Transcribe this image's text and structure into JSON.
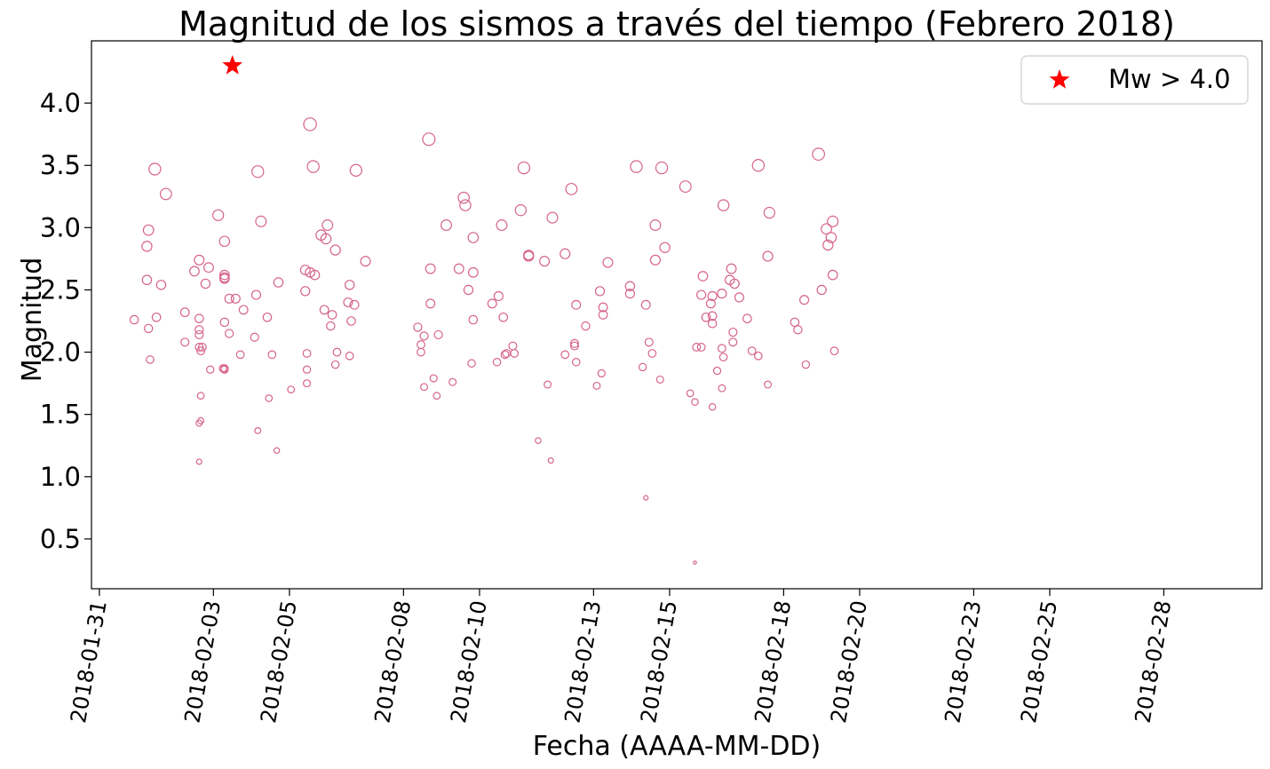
{
  "chart_data": {
    "type": "scatter",
    "title": "Magnitud de los sismos a través del tiempo (Febrero 2018)",
    "xlabel": "Fecha (AAAA-MM-DD)",
    "ylabel": "Magnitud",
    "xlim": [
      "2018-01-30T19:00",
      "2018-03-02T14:00"
    ],
    "ylim": [
      0.1,
      4.5
    ],
    "xticks": [
      "2018-01-31",
      "2018-02-03",
      "2018-02-05",
      "2018-02-08",
      "2018-02-10",
      "2018-02-13",
      "2018-02-15",
      "2018-02-18",
      "2018-02-20",
      "2018-02-23",
      "2018-02-25",
      "2018-02-28"
    ],
    "yticks": [
      "0.5",
      "1.0",
      "1.5",
      "2.0",
      "2.5",
      "3.0",
      "3.5",
      "4.0"
    ],
    "grid": false,
    "legend": {
      "position": "top-right",
      "entries": [
        "Mw > 4.0"
      ]
    },
    "colors": {
      "events": "#d6648c",
      "highlight": "#ff0000"
    },
    "series": [
      {
        "marker": "open-circle",
        "points": [
          [
            "2018-01-31T22:00",
            2.26
          ],
          [
            "2018-02-01T07:00",
            2.98
          ],
          [
            "2018-02-01T06:00",
            2.85
          ],
          [
            "2018-02-01T06:00",
            2.58
          ],
          [
            "2018-02-01T07:00",
            2.19
          ],
          [
            "2018-02-01T08:00",
            1.94
          ],
          [
            "2018-02-01T11:00",
            3.47
          ],
          [
            "2018-02-01T12:00",
            2.28
          ],
          [
            "2018-02-01T15:00",
            2.54
          ],
          [
            "2018-02-01T18:00",
            3.27
          ],
          [
            "2018-02-02T06:00",
            2.32
          ],
          [
            "2018-02-02T06:00",
            2.08
          ],
          [
            "2018-02-02T12:00",
            2.65
          ],
          [
            "2018-02-02T15:00",
            2.74
          ],
          [
            "2018-02-02T15:00",
            2.27
          ],
          [
            "2018-02-02T15:00",
            2.18
          ],
          [
            "2018-02-02T15:00",
            2.14
          ],
          [
            "2018-02-02T15:00",
            2.04
          ],
          [
            "2018-02-02T17:00",
            2.04
          ],
          [
            "2018-02-02T16:00",
            2.01
          ],
          [
            "2018-02-02T16:00",
            1.65
          ],
          [
            "2018-02-02T16:00",
            1.45
          ],
          [
            "2018-02-02T15:00",
            1.43
          ],
          [
            "2018-02-02T15:00",
            1.12
          ],
          [
            "2018-02-02T19:00",
            2.55
          ],
          [
            "2018-02-02T21:00",
            2.68
          ],
          [
            "2018-02-02T22:00",
            1.86
          ],
          [
            "2018-02-03T03:00",
            3.1
          ],
          [
            "2018-02-03T07:00",
            2.89
          ],
          [
            "2018-02-03T07:00",
            2.62
          ],
          [
            "2018-02-03T07:00",
            2.6
          ],
          [
            "2018-02-03T07:00",
            2.59
          ],
          [
            "2018-02-03T07:00",
            2.24
          ],
          [
            "2018-02-03T06:00",
            1.87
          ],
          [
            "2018-02-03T07:00",
            1.86
          ],
          [
            "2018-02-03T07:00",
            1.87
          ],
          [
            "2018-02-03T10:00",
            2.43
          ],
          [
            "2018-02-03T10:00",
            2.15
          ],
          [
            "2018-02-03T14:00",
            2.43
          ],
          [
            "2018-02-03T19:00",
            2.34
          ],
          [
            "2018-02-03T17:00",
            1.98
          ],
          [
            "2018-02-04T04:00",
            3.45
          ],
          [
            "2018-02-04T03:00",
            2.46
          ],
          [
            "2018-02-04T02:00",
            2.12
          ],
          [
            "2018-02-04T04:00",
            1.37
          ],
          [
            "2018-02-04T06:00",
            3.05
          ],
          [
            "2018-02-04T10:00",
            2.28
          ],
          [
            "2018-02-04T11:00",
            1.63
          ],
          [
            "2018-02-04T13:00",
            1.98
          ],
          [
            "2018-02-04T17:00",
            2.56
          ],
          [
            "2018-02-04T16:00",
            1.21
          ],
          [
            "2018-02-05T01:00",
            1.7
          ],
          [
            "2018-02-05T10:00",
            2.66
          ],
          [
            "2018-02-05T10:00",
            2.49
          ],
          [
            "2018-02-05T11:00",
            1.99
          ],
          [
            "2018-02-05T11:00",
            1.86
          ],
          [
            "2018-02-05T11:00",
            1.75
          ],
          [
            "2018-02-05T13:00",
            3.83
          ],
          [
            "2018-02-05T13:00",
            2.64
          ],
          [
            "2018-02-05T15:00",
            3.49
          ],
          [
            "2018-02-05T16:00",
            2.62
          ],
          [
            "2018-02-05T20:00",
            2.94
          ],
          [
            "2018-02-05T22:00",
            2.34
          ],
          [
            "2018-02-06T00:00",
            3.02
          ],
          [
            "2018-02-05T23:00",
            2.91
          ],
          [
            "2018-02-06T03:00",
            2.3
          ],
          [
            "2018-02-06T02:00",
            2.21
          ],
          [
            "2018-02-06T05:00",
            1.9
          ],
          [
            "2018-02-06T05:00",
            2.82
          ],
          [
            "2018-02-06T06:00",
            2.0
          ],
          [
            "2018-02-06T13:00",
            2.4
          ],
          [
            "2018-02-06T14:00",
            2.54
          ],
          [
            "2018-02-06T15:00",
            2.25
          ],
          [
            "2018-02-06T14:00",
            1.97
          ],
          [
            "2018-02-06T17:00",
            2.38
          ],
          [
            "2018-02-06T18:00",
            3.46
          ],
          [
            "2018-02-07T00:00",
            2.73
          ],
          [
            "2018-02-08T09:00",
            2.2
          ],
          [
            "2018-02-08T11:00",
            2.06
          ],
          [
            "2018-02-08T11:00",
            2.0
          ],
          [
            "2018-02-08T13:00",
            2.13
          ],
          [
            "2018-02-08T13:00",
            1.72
          ],
          [
            "2018-02-08T16:00",
            3.71
          ],
          [
            "2018-02-08T17:00",
            2.67
          ],
          [
            "2018-02-08T17:00",
            2.39
          ],
          [
            "2018-02-08T19:00",
            1.79
          ],
          [
            "2018-02-08T21:00",
            1.65
          ],
          [
            "2018-02-08T22:00",
            2.14
          ],
          [
            "2018-02-09T03:00",
            3.02
          ],
          [
            "2018-02-09T07:00",
            1.76
          ],
          [
            "2018-02-09T11:00",
            2.67
          ],
          [
            "2018-02-09T14:00",
            3.24
          ],
          [
            "2018-02-09T15:00",
            3.18
          ],
          [
            "2018-02-09T17:00",
            2.5
          ],
          [
            "2018-02-09T19:00",
            1.91
          ],
          [
            "2018-02-09T20:00",
            2.64
          ],
          [
            "2018-02-09T20:00",
            2.26
          ],
          [
            "2018-02-09T20:00",
            2.92
          ],
          [
            "2018-02-10T08:00",
            2.39
          ],
          [
            "2018-02-10T11:00",
            1.92
          ],
          [
            "2018-02-10T12:00",
            2.45
          ],
          [
            "2018-02-10T14:00",
            3.02
          ],
          [
            "2018-02-10T15:00",
            2.28
          ],
          [
            "2018-02-10T16:00",
            1.98
          ],
          [
            "2018-02-10T17:00",
            1.99
          ],
          [
            "2018-02-10T21:00",
            2.05
          ],
          [
            "2018-02-10T22:00",
            1.99
          ],
          [
            "2018-02-11T02:00",
            3.14
          ],
          [
            "2018-02-11T04:00",
            3.48
          ],
          [
            "2018-02-11T07:00",
            2.78
          ],
          [
            "2018-02-11T07:00",
            2.77
          ],
          [
            "2018-02-11T13:00",
            1.29
          ],
          [
            "2018-02-11T17:00",
            2.73
          ],
          [
            "2018-02-11T19:00",
            1.74
          ],
          [
            "2018-02-11T21:00",
            1.13
          ],
          [
            "2018-02-11T22:00",
            3.08
          ],
          [
            "2018-02-12T06:00",
            2.79
          ],
          [
            "2018-02-12T06:00",
            1.98
          ],
          [
            "2018-02-12T10:00",
            3.31
          ],
          [
            "2018-02-12T12:00",
            2.07
          ],
          [
            "2018-02-12T12:00",
            2.05
          ],
          [
            "2018-02-12T13:00",
            1.92
          ],
          [
            "2018-02-12T13:00",
            2.38
          ],
          [
            "2018-02-12T19:00",
            2.21
          ],
          [
            "2018-02-13T02:00",
            1.73
          ],
          [
            "2018-02-13T04:00",
            2.49
          ],
          [
            "2018-02-13T05:00",
            1.83
          ],
          [
            "2018-02-13T06:00",
            2.36
          ],
          [
            "2018-02-13T06:00",
            2.3
          ],
          [
            "2018-02-13T09:00",
            2.72
          ],
          [
            "2018-02-13T23:00",
            2.53
          ],
          [
            "2018-02-13T23:00",
            2.47
          ],
          [
            "2018-02-14T03:00",
            3.49
          ],
          [
            "2018-02-14T07:00",
            1.88
          ],
          [
            "2018-02-14T09:00",
            0.83
          ],
          [
            "2018-02-14T09:00",
            2.38
          ],
          [
            "2018-02-14T11:00",
            2.08
          ],
          [
            "2018-02-14T13:00",
            1.99
          ],
          [
            "2018-02-14T15:00",
            3.02
          ],
          [
            "2018-02-14T15:00",
            2.74
          ],
          [
            "2018-02-14T18:00",
            1.78
          ],
          [
            "2018-02-14T19:00",
            3.48
          ],
          [
            "2018-02-14T21:00",
            2.84
          ],
          [
            "2018-02-15T10:00",
            3.33
          ],
          [
            "2018-02-15T13:00",
            1.67
          ],
          [
            "2018-02-15T16:00",
            1.6
          ],
          [
            "2018-02-15T16:00",
            0.31
          ],
          [
            "2018-02-15T17:00",
            2.04
          ],
          [
            "2018-02-15T20:00",
            2.04
          ],
          [
            "2018-02-15T20:00",
            2.46
          ],
          [
            "2018-02-15T21:00",
            2.61
          ],
          [
            "2018-02-15T23:00",
            2.28
          ],
          [
            "2018-02-16T02:00",
            2.39
          ],
          [
            "2018-02-16T03:00",
            2.29
          ],
          [
            "2018-02-16T03:00",
            2.23
          ],
          [
            "2018-02-16T03:00",
            2.45
          ],
          [
            "2018-02-16T03:00",
            1.56
          ],
          [
            "2018-02-16T06:00",
            1.85
          ],
          [
            "2018-02-16T09:00",
            2.47
          ],
          [
            "2018-02-16T09:00",
            2.03
          ],
          [
            "2018-02-16T09:00",
            1.71
          ],
          [
            "2018-02-16T10:00",
            3.18
          ],
          [
            "2018-02-16T10:00",
            1.96
          ],
          [
            "2018-02-16T14:00",
            2.58
          ],
          [
            "2018-02-16T15:00",
            2.67
          ],
          [
            "2018-02-16T17:00",
            2.55
          ],
          [
            "2018-02-16T16:00",
            2.16
          ],
          [
            "2018-02-16T16:00",
            2.08
          ],
          [
            "2018-02-16T20:00",
            2.44
          ],
          [
            "2018-02-17T01:00",
            2.27
          ],
          [
            "2018-02-17T04:00",
            2.01
          ],
          [
            "2018-02-17T08:00",
            1.97
          ],
          [
            "2018-02-17T08:00",
            3.5
          ],
          [
            "2018-02-17T14:00",
            2.77
          ],
          [
            "2018-02-17T14:00",
            1.74
          ],
          [
            "2018-02-17T15:00",
            3.12
          ],
          [
            "2018-02-18T07:00",
            2.24
          ],
          [
            "2018-02-18T09:00",
            2.18
          ],
          [
            "2018-02-18T13:00",
            2.42
          ],
          [
            "2018-02-18T14:00",
            1.9
          ],
          [
            "2018-02-18T22:00",
            3.59
          ],
          [
            "2018-02-19T00:00",
            2.5
          ],
          [
            "2018-02-19T03:00",
            2.99
          ],
          [
            "2018-02-19T04:00",
            2.86
          ],
          [
            "2018-02-19T06:00",
            2.92
          ],
          [
            "2018-02-19T07:00",
            3.05
          ],
          [
            "2018-02-19T07:00",
            2.62
          ],
          [
            "2018-02-19T08:00",
            2.01
          ]
        ]
      },
      {
        "name": "Mw > 4.0",
        "marker": "star",
        "points": [
          [
            "2018-02-03T12:00",
            4.3
          ]
        ]
      }
    ]
  }
}
